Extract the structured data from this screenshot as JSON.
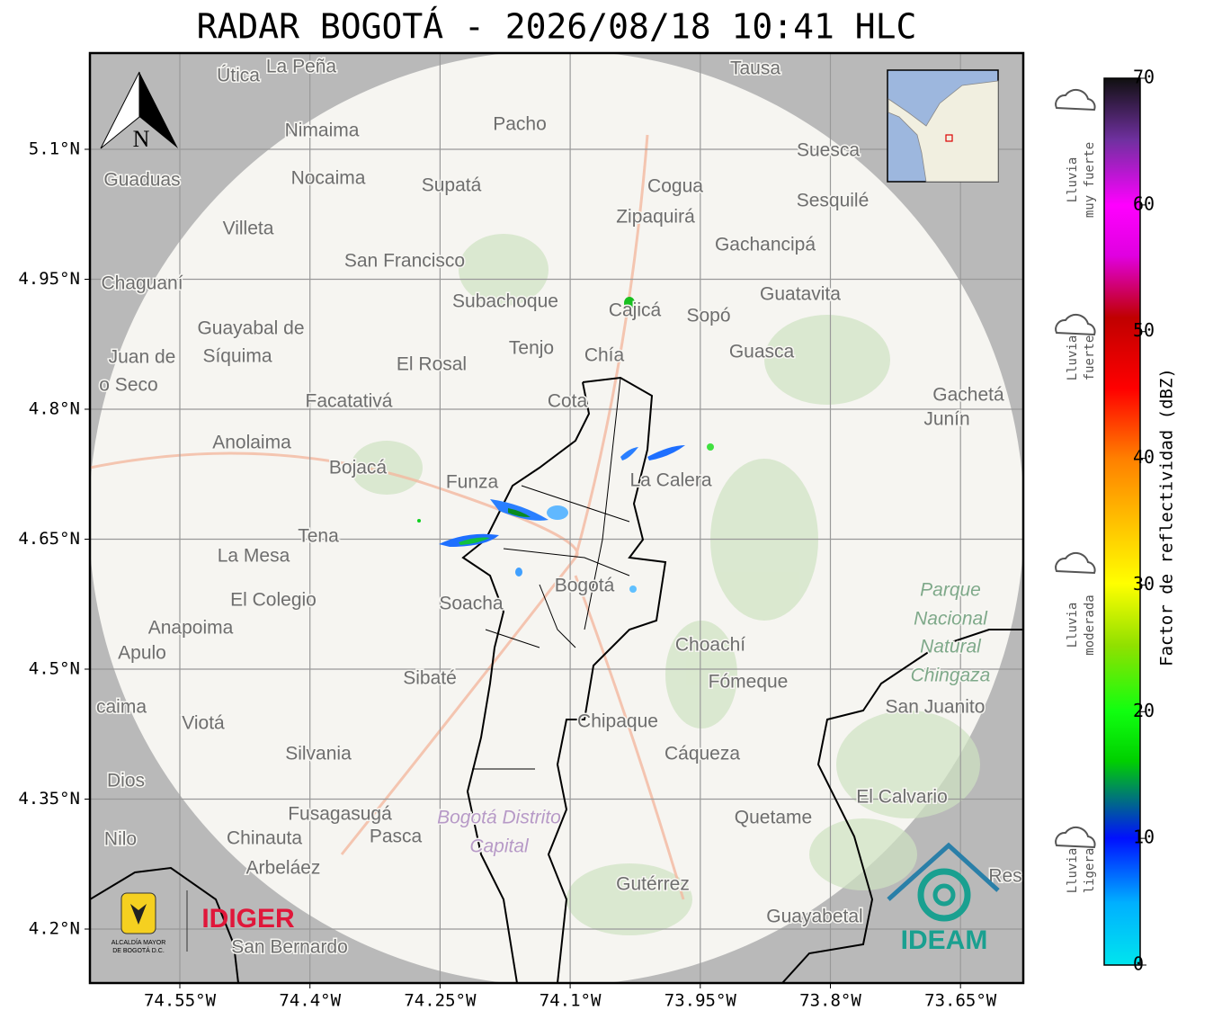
{
  "title": "RADAR BOGOTÁ - 2026/08/18 10:41 HLC",
  "lon_labels": [
    "74.55°W",
    "74.4°W",
    "74.25°W",
    "74.1°W",
    "73.95°W",
    "73.8°W",
    "73.65°W"
  ],
  "lat_labels": [
    "5.1°N",
    "4.95°N",
    "4.8°N",
    "4.65°N",
    "4.5°N",
    "4.35°N",
    "4.2°N"
  ],
  "colorbar": {
    "label": "Factor de reflectividad (dBZ)",
    "ticks": [
      0,
      10,
      20,
      30,
      40,
      50,
      60,
      70
    ]
  },
  "rain_levels": [
    {
      "line1": "Lluvia",
      "line2": "muy fuerte"
    },
    {
      "line1": "Lluvia",
      "line2": "fuerte"
    },
    {
      "line1": "Lluvia",
      "line2": "moderada"
    },
    {
      "line1": "Lluvia",
      "line2": "ligera"
    }
  ],
  "compass": "N",
  "logos": {
    "alcaldia1": "ALCALDÍA MAYOR",
    "alcaldia2": "DE BOGOTÁ D.C.",
    "idiger": "IDIGER",
    "ideam": "IDEAM"
  },
  "places": [
    "Útica",
    "La Peña",
    "Tausa",
    "Pacho",
    "Nimaima",
    "Guaduas",
    "Nocaima",
    "Supatá",
    "Cogua",
    "Zipaquirá",
    "Suesca",
    "Sesquilé",
    "Villeta",
    "Gachancipá",
    "San Francisco",
    "Chaguaní",
    "Guatavita",
    "Subachoque",
    "Cajicá",
    "Sopó",
    "Guayabal de",
    "Síquima",
    "Tenjo",
    "Chía",
    "Guasca",
    "El Rosal",
    "Juan de",
    "o Seco",
    "Facatativá",
    "Cota",
    "Gachetá",
    "Junín",
    "Anolaima",
    "Bojacá",
    "Funza",
    "La Calera",
    "Tena",
    "La Mesa",
    "El Colegio",
    "Soacha",
    "Bogotá",
    "Anapoima",
    "Apulo",
    "Choachí",
    "Sibaté",
    "Fómeque",
    "San Juanito",
    "caima",
    "Viotá",
    "Chipaque",
    "Silvania",
    "Cáqueza",
    "Dios",
    "El Calvario",
    "Fusagasugá",
    "Quetame",
    "Nilo",
    "Chinauta",
    "Pasca",
    "Arbeláez",
    "Gutérrez",
    "Guayabetal",
    "San Bernardo",
    "Res",
    "Parque",
    "Nacional",
    "Natural",
    "Chingaza",
    "Bogotá Distrito",
    "Capital"
  ]
}
